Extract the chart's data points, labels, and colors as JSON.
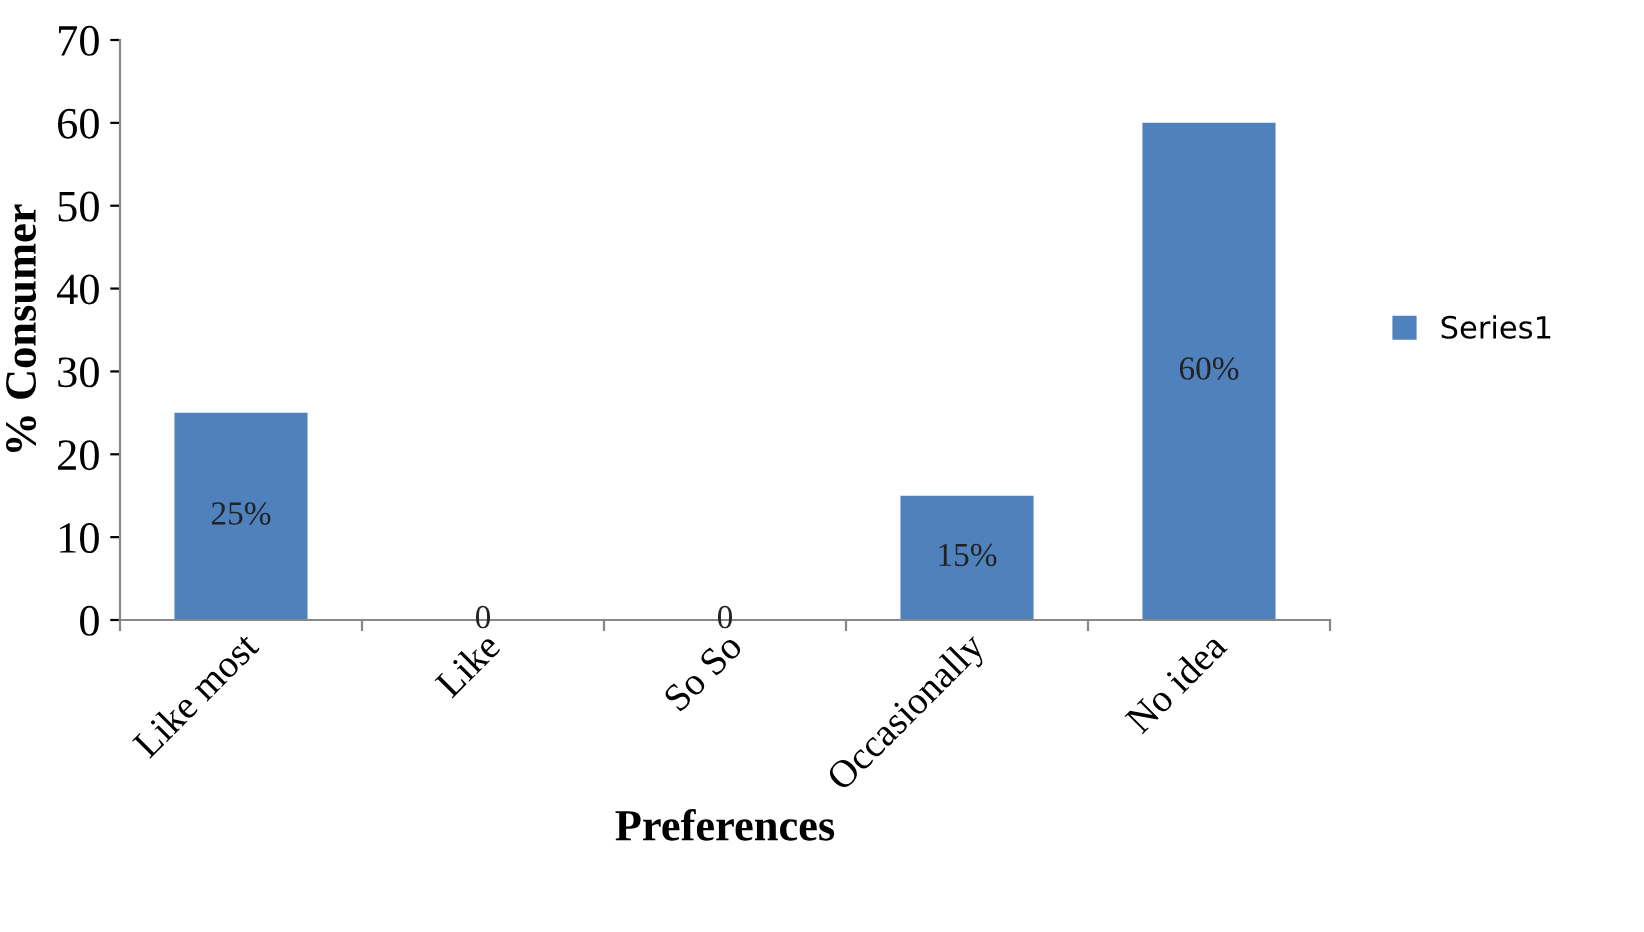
{
  "chart_data": {
    "type": "bar",
    "xlabel": "Preferences",
    "ylabel": "% Consumer",
    "categories": [
      "Like most",
      "Like",
      "So So",
      "Occasionally",
      "No idea"
    ],
    "series": [
      {
        "name": "Series1",
        "color": "#4f81bd",
        "values": [
          25,
          0,
          0,
          15,
          60
        ],
        "value_labels": [
          "25%",
          "0",
          "0",
          "15%",
          "60%"
        ]
      }
    ],
    "ylim": [
      0,
      70
    ],
    "yticks": [
      0,
      10,
      20,
      30,
      40,
      50,
      60,
      70
    ],
    "grid": false,
    "legend": "right"
  }
}
